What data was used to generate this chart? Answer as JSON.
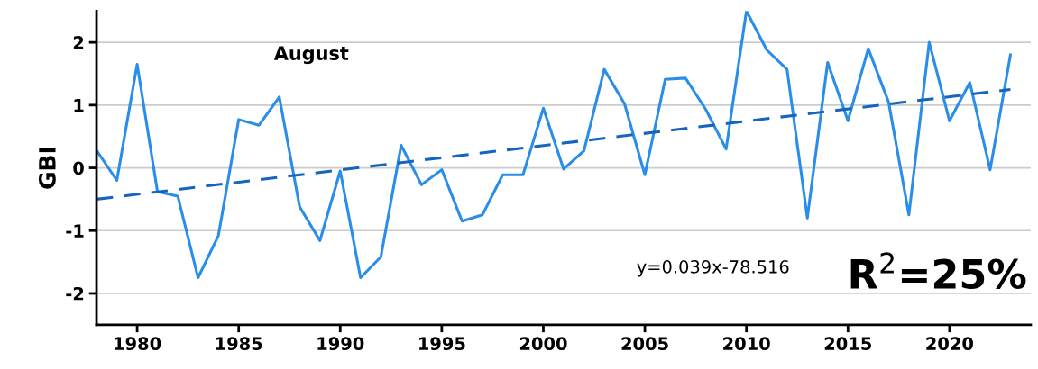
{
  "chart_data": {
    "type": "line",
    "ylabel": "GBI",
    "xlim": [
      1978,
      2024
    ],
    "xticks": [
      1980,
      1985,
      1990,
      1995,
      2000,
      2005,
      2010,
      2015,
      2020
    ],
    "ylim": [
      -2.5,
      2.5
    ],
    "yticks": [
      -2,
      -1,
      0,
      1,
      2
    ],
    "grid": "y",
    "legend": false,
    "x": [
      1978,
      1979,
      1980,
      1981,
      1982,
      1983,
      1984,
      1985,
      1986,
      1987,
      1988,
      1989,
      1990,
      1991,
      1992,
      1993,
      1994,
      1995,
      1996,
      1997,
      1998,
      1999,
      2000,
      2001,
      2002,
      2003,
      2004,
      2005,
      2006,
      2007,
      2008,
      2009,
      2010,
      2011,
      2012,
      2013,
      2014,
      2015,
      2016,
      2017,
      2018,
      2019,
      2020,
      2021,
      2022,
      2023
    ],
    "series": [
      {
        "color": "#2a8ee8",
        "line_style": "solid",
        "values": [
          0.28,
          -0.2,
          1.65,
          -0.38,
          -0.45,
          -1.75,
          -1.08,
          0.77,
          0.68,
          1.13,
          -0.62,
          -1.16,
          -0.05,
          -1.75,
          -1.42,
          0.36,
          -0.27,
          -0.03,
          -0.85,
          -0.75,
          -0.11,
          -0.11,
          0.95,
          -0.02,
          0.27,
          1.57,
          1.02,
          -0.11,
          1.41,
          1.43,
          0.93,
          0.3,
          2.5,
          1.88,
          1.57,
          -0.8,
          1.68,
          0.75,
          1.9,
          1.05,
          -0.75,
          2.0,
          0.75,
          1.36,
          -0.03,
          1.8
        ]
      },
      {
        "type": "line",
        "color": "#1565c0",
        "line_style": "dashed",
        "x": [
          1978,
          2023
        ],
        "values": [
          -0.5,
          1.25
        ]
      }
    ],
    "annotations": [
      "August",
      "y=0.039x-78.516",
      "R$^{2}$=25%"
    ]
  }
}
